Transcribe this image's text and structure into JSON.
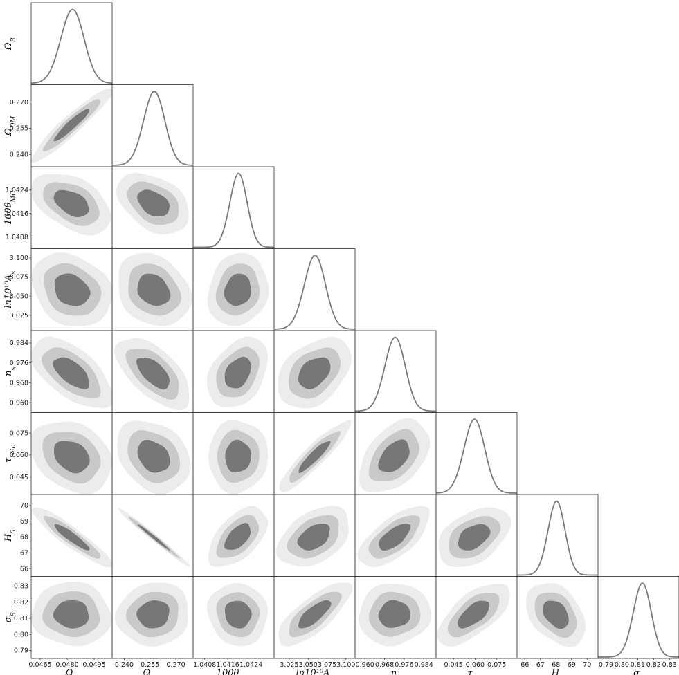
{
  "chart_data": {
    "type": "corner",
    "title": "",
    "contour_levels": [
      "68%",
      "95%",
      "99%"
    ],
    "colors": {
      "c68": "#777777",
      "c95": "#c9c9c9",
      "c99": "#ececec",
      "pdf_line": "#7a7a7a",
      "frame": "#444444"
    },
    "parameters": [
      {
        "key": "omega_b",
        "label": "Ω_B",
        "mean": 0.04825,
        "sigma": 0.00065,
        "range": [
          0.046,
          0.0505
        ],
        "xticks": [
          "0.0465",
          "0.0480",
          "0.0495"
        ],
        "xtick_values": [
          0.0465,
          0.048,
          0.0495
        ],
        "yticks": [],
        "ytick_values": []
      },
      {
        "key": "omega_dm",
        "label": "Ω_DM",
        "mean": 0.257,
        "sigma": 0.0062,
        "range": [
          0.233,
          0.28
        ],
        "xticks": [
          "0.240",
          "0.255",
          "0.270"
        ],
        "xtick_values": [
          0.24,
          0.255,
          0.27
        ],
        "yticks": [
          "0.270",
          "0.255",
          "0.240"
        ],
        "ytick_values": [
          0.27,
          0.255,
          0.24
        ]
      },
      {
        "key": "theta_mc",
        "label": "100θ_MC",
        "mean": 1.04195,
        "sigma": 0.0003,
        "range": [
          1.0404,
          1.0432
        ],
        "xticks": [
          "1.0408",
          "1.0416",
          "1.0424"
        ],
        "xtick_values": [
          1.0408,
          1.0416,
          1.0424
        ],
        "yticks": [
          "1.0424",
          "1.0416",
          "1.0408"
        ],
        "ytick_values": [
          1.0424,
          1.0416,
          1.0408
        ]
      },
      {
        "key": "ln_as",
        "label": "ln10¹⁰A_s",
        "mean": 3.058,
        "sigma": 0.014,
        "range": [
          3.005,
          3.112
        ],
        "xticks": [
          "3.025",
          "3.050",
          "3.075",
          "3.100"
        ],
        "xtick_values": [
          3.025,
          3.05,
          3.075,
          3.1
        ],
        "yticks": [
          "3.100",
          "3.075",
          "3.050",
          "3.025"
        ],
        "ytick_values": [
          3.1,
          3.075,
          3.05,
          3.025
        ]
      },
      {
        "key": "n_s",
        "label": "n_s",
        "mean": 0.972,
        "sigma": 0.0042,
        "range": [
          0.956,
          0.989
        ],
        "xticks": [
          "0.960",
          "0.968",
          "0.976",
          "0.984"
        ],
        "xtick_values": [
          0.96,
          0.968,
          0.976,
          0.984
        ],
        "yticks": [
          "0.984",
          "0.976",
          "0.968",
          "0.960"
        ],
        "ytick_values": [
          0.984,
          0.976,
          0.968,
          0.96
        ]
      },
      {
        "key": "tau",
        "label": "τ_reio",
        "mean": 0.059,
        "sigma": 0.0072,
        "range": [
          0.033,
          0.089
        ],
        "xticks": [
          "0.045",
          "0.060",
          "0.075"
        ],
        "xtick_values": [
          0.045,
          0.06,
          0.075
        ],
        "yticks": [
          "0.075",
          "0.060",
          "0.045"
        ],
        "ytick_values": [
          0.075,
          0.06,
          0.045
        ]
      },
      {
        "key": "h0",
        "label": "H_0",
        "mean": 68.0,
        "sigma": 0.55,
        "range": [
          65.5,
          70.7
        ],
        "xticks": [
          "66",
          "67",
          "68",
          "69",
          "70"
        ],
        "xtick_values": [
          66,
          67,
          68,
          69,
          70
        ],
        "yticks": [
          "70",
          "69",
          "68",
          "67",
          "66"
        ],
        "ytick_values": [
          70,
          69,
          68,
          67,
          66
        ]
      },
      {
        "key": "sigma8",
        "label": "σ_8",
        "mean": 0.8125,
        "sigma": 0.0057,
        "range": [
          0.785,
          0.836
        ],
        "xticks": [
          "0.79",
          "0.80",
          "0.81",
          "0.82",
          "0.83"
        ],
        "xtick_values": [
          0.79,
          0.8,
          0.81,
          0.82,
          0.83
        ],
        "yticks": [
          "0.83",
          "0.82",
          "0.81",
          "0.80",
          "0.79"
        ],
        "ytick_values": [
          0.83,
          0.82,
          0.81,
          0.8,
          0.79
        ]
      }
    ],
    "correlations": [
      [
        1.0,
        0.94,
        -0.45,
        -0.25,
        -0.6,
        -0.25,
        -0.92,
        -0.05
      ],
      [
        0.94,
        1.0,
        -0.4,
        -0.25,
        -0.6,
        -0.25,
        -0.99,
        0.05
      ],
      [
        -0.45,
        -0.4,
        1.0,
        0.1,
        0.35,
        0.05,
        0.55,
        -0.1
      ],
      [
        -0.25,
        -0.25,
        0.1,
        1.0,
        0.4,
        0.92,
        0.4,
        0.75
      ],
      [
        -0.6,
        -0.6,
        0.35,
        0.4,
        1.0,
        0.45,
        0.65,
        0.05
      ],
      [
        -0.25,
        -0.25,
        0.05,
        0.92,
        0.45,
        1.0,
        0.4,
        0.65
      ],
      [
        -0.92,
        -0.99,
        0.55,
        0.4,
        0.65,
        0.4,
        1.0,
        -0.35
      ],
      [
        -0.05,
        0.05,
        -0.1,
        0.75,
        0.05,
        0.65,
        -0.35,
        1.0
      ]
    ]
  }
}
